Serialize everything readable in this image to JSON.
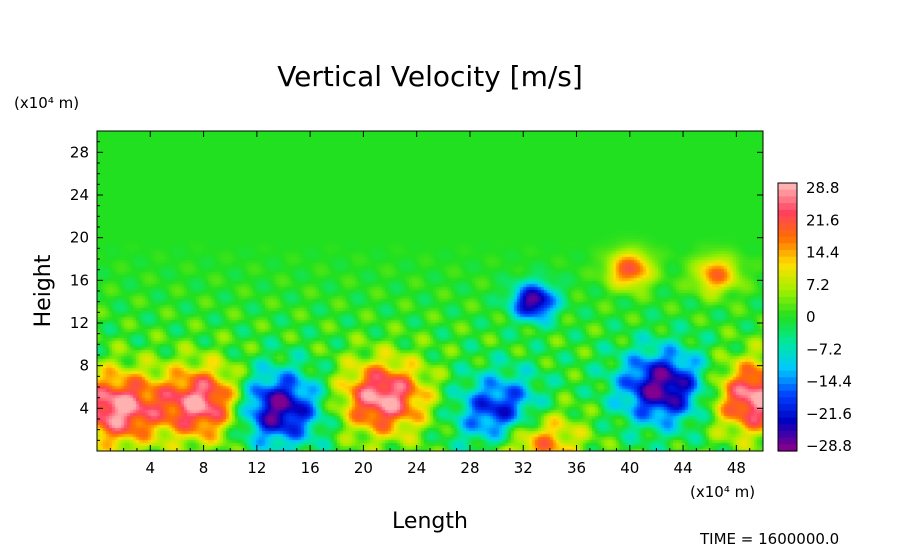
{
  "chart_data": {
    "type": "heatmap",
    "title": "Vertical Velocity [m/s]",
    "xlabel": "Length",
    "ylabel": "Height",
    "x_unit": "(x10⁴ m)",
    "y_unit": "(x10⁴ m)",
    "xlim": [
      0,
      50
    ],
    "ylim": [
      0,
      30
    ],
    "x_ticks": [
      "4",
      "8",
      "12",
      "16",
      "20",
      "24",
      "28",
      "32",
      "36",
      "40",
      "44",
      "48"
    ],
    "y_ticks": [
      "4",
      "8",
      "12",
      "16",
      "20",
      "24",
      "28"
    ],
    "colorbar": {
      "min": -28.8,
      "max": 28.8,
      "tick_labels": [
        "28.8",
        "21.6",
        "14.4",
        "7.2",
        "0",
        "−7.2",
        "−14.4",
        "−21.6",
        "−28.8"
      ],
      "colors": [
        "#ffb0b0",
        "#ff4060",
        "#ff7000",
        "#ffe000",
        "#a0f000",
        "#20e020",
        "#00e8a0",
        "#00c8ff",
        "#0040ff",
        "#0000c0",
        "#800090"
      ]
    },
    "background_value": 0,
    "features": [
      {
        "kind": "updraft",
        "x": 1.5,
        "y": 4.0,
        "peak": 28.8
      },
      {
        "kind": "updraft",
        "x": 8.0,
        "y": 4.5,
        "peak": 28.8
      },
      {
        "kind": "downdraft",
        "x": 13.5,
        "y": 4.0,
        "peak": -28.8
      },
      {
        "kind": "updraft",
        "x": 21.5,
        "y": 5.0,
        "peak": 28.8
      },
      {
        "kind": "downdraft",
        "x": 30.5,
        "y": 3.5,
        "peak": -26
      },
      {
        "kind": "updraft",
        "x": 32.8,
        "y": 1.0,
        "peak": 22
      },
      {
        "kind": "downdraft",
        "x": 42.5,
        "y": 6.0,
        "peak": -28.8
      },
      {
        "kind": "updraft",
        "x": 49.5,
        "y": 5.0,
        "peak": 28.8
      },
      {
        "kind": "downdraft",
        "x": 32.8,
        "y": 14.0,
        "peak": -28.8
      },
      {
        "kind": "updraft",
        "x": 40.0,
        "y": 17.0,
        "peak": 21
      },
      {
        "kind": "updraft",
        "x": 46.5,
        "y": 16.5,
        "peak": 18
      }
    ]
  },
  "time_label": "TIME  =  1600000.0"
}
